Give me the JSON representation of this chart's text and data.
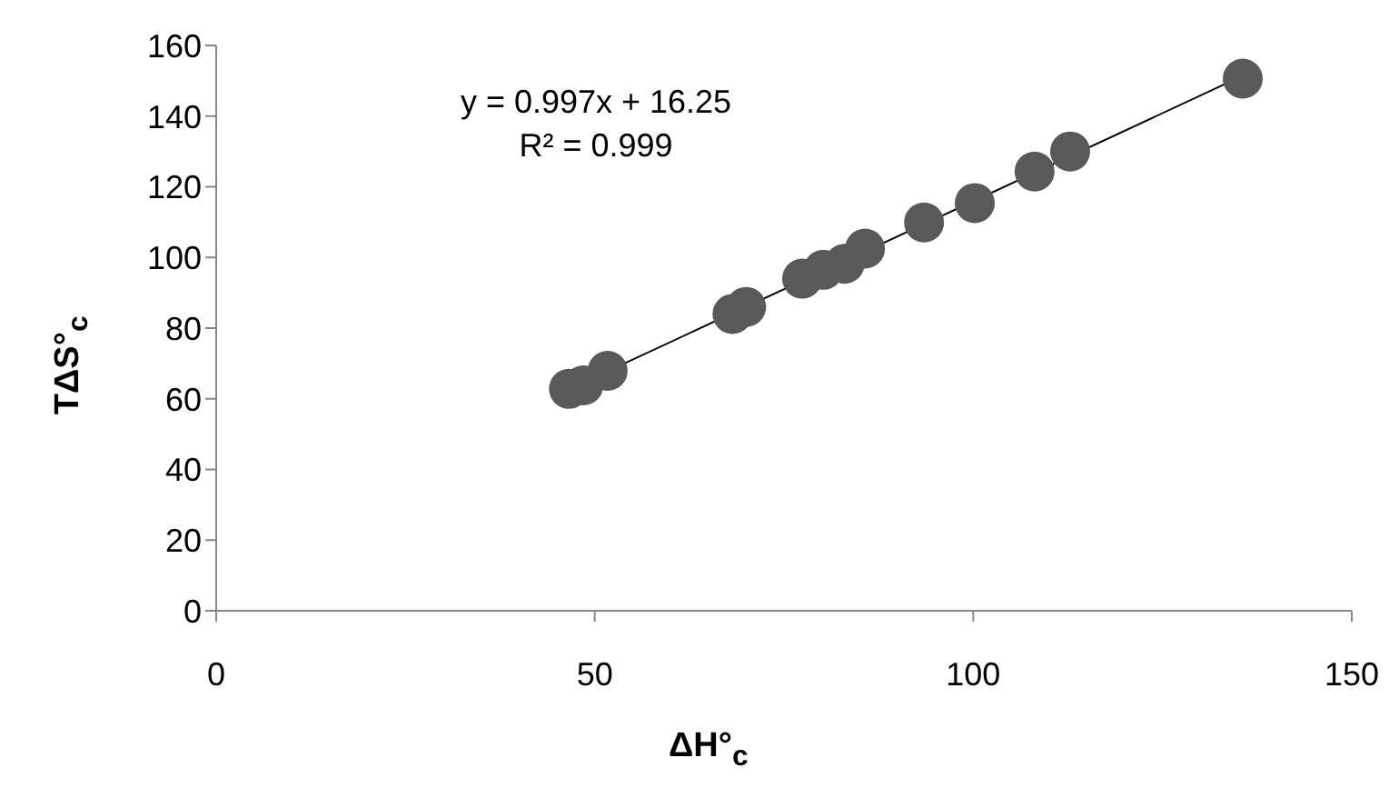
{
  "chart_data": {
    "type": "scatter",
    "xlabel": "ΔH°$_{c}$",
    "ylabel": "TΔS°$_{c}$",
    "annotations": [
      "y = 0.997x + 16.25",
      "R² = 0.999"
    ],
    "xlim": [
      0,
      150
    ],
    "xticks": [
      0,
      50,
      100,
      150
    ],
    "ylim": [
      0,
      160
    ],
    "yticks": [
      0,
      20,
      40,
      60,
      80,
      100,
      120,
      140,
      160
    ],
    "grid": false,
    "legend": false,
    "series": [
      {
        "marker": "circle",
        "color": "#595959",
        "x": [
          46.6,
          48.5,
          51.7,
          68.2,
          70,
          77.4,
          80.2,
          83,
          85.7,
          93.5,
          100.2,
          108.1,
          112.8,
          135.6
        ],
        "values": [
          62.8,
          63.8,
          67.9,
          84,
          86,
          94,
          96.5,
          98.2,
          102.5,
          109.9,
          115.4,
          124.3,
          130,
          150.6
        ]
      },
      {
        "type": "line",
        "color": "#000000",
        "x": [
          47,
          135.6
        ],
        "values": [
          63.1,
          151.4
        ]
      }
    ]
  }
}
